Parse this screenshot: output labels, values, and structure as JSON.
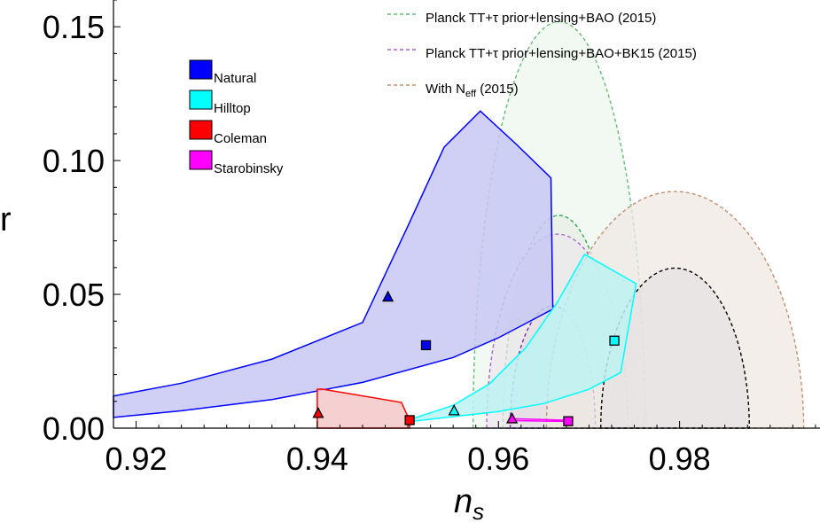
{
  "chart_data": {
    "type": "area",
    "xlabel": "n",
    "xlabel_sub": "s",
    "ylabel": "r",
    "xlim": [
      0.9175,
      0.9955
    ],
    "ylim": [
      0.0,
      0.16
    ],
    "xticks": [
      0.92,
      0.94,
      0.96,
      0.98
    ],
    "xtick_labels": [
      "0.92",
      "0.94",
      "0.96",
      "0.98"
    ],
    "yticks": [
      0.0,
      0.05,
      0.1,
      0.15
    ],
    "ytick_labels": [
      "0.00",
      "0.05",
      "0.10",
      "0.15"
    ],
    "legend_models": [
      {
        "name": "Natural",
        "color": "#0000ff"
      },
      {
        "name": "Hilltop",
        "color": "#00ffff"
      },
      {
        "name": "Coleman",
        "color": "#ff0000"
      },
      {
        "name": "Starobinsky",
        "color": "#ff00ff"
      }
    ],
    "legend_planck": [
      {
        "label": "Planck TT+τ prior+lensing+BAO (2015)",
        "color": "#66bb77"
      },
      {
        "label": "Planck TT+τ prior+lensing+BAO+BK15 (2015)",
        "color": "#aa66cc"
      },
      {
        "label_main": "With N",
        "label_sub": "eff",
        "label_tail": " (2015)",
        "color": "#c09070"
      }
    ],
    "model_regions": [
      {
        "name": "Natural",
        "fill": "#c8c8f5",
        "stroke": "#0000ff",
        "outline": [
          [
            0.9175,
            0.004
          ],
          [
            0.925,
            0.0065
          ],
          [
            0.935,
            0.0107
          ],
          [
            0.945,
            0.0171
          ],
          [
            0.955,
            0.0264
          ],
          [
            0.96,
            0.0338
          ],
          [
            0.963,
            0.0391
          ],
          [
            0.966,
            0.0445
          ],
          [
            0.9658,
            0.0935
          ],
          [
            0.962,
            0.106
          ],
          [
            0.958,
            0.1185
          ],
          [
            0.954,
            0.105
          ],
          [
            0.95,
            0.0755
          ],
          [
            0.945,
            0.0395
          ],
          [
            0.935,
            0.0258
          ],
          [
            0.925,
            0.0168
          ],
          [
            0.9175,
            0.012
          ]
        ]
      },
      {
        "name": "Hilltop",
        "fill": "#bdf2f2",
        "stroke": "#00ffff",
        "outline": [
          [
            0.9503,
            0.0025
          ],
          [
            0.955,
            0.0043
          ],
          [
            0.96,
            0.0062
          ],
          [
            0.965,
            0.0092
          ],
          [
            0.97,
            0.0145
          ],
          [
            0.9735,
            0.0208
          ],
          [
            0.9752,
            0.054
          ],
          [
            0.9695,
            0.065
          ],
          [
            0.9665,
            0.047
          ],
          [
            0.963,
            0.03
          ],
          [
            0.959,
            0.0165
          ],
          [
            0.955,
            0.0085
          ],
          [
            0.9505,
            0.0035
          ]
        ]
      },
      {
        "name": "Coleman",
        "fill": "#f5c8c8",
        "stroke": "#ff0000",
        "outline": [
          [
            0.94,
            0.0
          ],
          [
            0.9502,
            0.0
          ],
          [
            0.9502,
            0.0028
          ],
          [
            0.9493,
            0.0096
          ],
          [
            0.9405,
            0.0146
          ],
          [
            0.94,
            0.0145
          ]
        ]
      },
      {
        "name": "Starobinsky",
        "fill": "#f3c8f3",
        "stroke": "#ff00ff",
        "outline": [
          [
            0.9615,
            0.0035
          ],
          [
            0.9648,
            0.0032
          ],
          [
            0.9678,
            0.0029
          ],
          [
            0.9678,
            0.0025
          ],
          [
            0.9615,
            0.0028
          ]
        ]
      }
    ],
    "planck_contours": [
      {
        "name": "Planck TT+τ prior+lensing+BAO (2015) 95%",
        "fill": "#eef5ee",
        "stroke": "#66bb77",
        "center": [
          0.9667,
          0.0
        ],
        "rx": 0.0095,
        "ry": 0.152
      },
      {
        "name": "Planck TT+τ prior+lensing+BAO (2015) 68%",
        "fill": "#e6efe6",
        "stroke": "#33aa55",
        "center": [
          0.9667,
          0.0
        ],
        "rx": 0.0062,
        "ry": 0.0795
      },
      {
        "name": "Planck TT+τ prior+lensing+BAO+BK15 (2015) 95%",
        "fill": "#ece8ec",
        "stroke": "#aa66cc",
        "center": [
          0.9665,
          0.0
        ],
        "rx": 0.0078,
        "ry": 0.0725
      },
      {
        "name": "Planck TT+τ prior+lensing+BAO+BK15 (2015) 68%",
        "fill": "#e3dde3",
        "stroke": "#7733aa",
        "center": [
          0.966,
          0.0
        ],
        "rx": 0.0047,
        "ry": 0.0457
      },
      {
        "name": "With Neff (2015) 95%",
        "fill": "#efe8e3",
        "stroke": "#c09070",
        "center": [
          0.9795,
          0.0
        ],
        "rx": 0.0142,
        "ry": 0.0885
      },
      {
        "name": "With Neff (2015) 68%",
        "fill": "#e4e2e2",
        "stroke": "#000000",
        "center": [
          0.9795,
          0.0
        ],
        "rx": 0.0082,
        "ry": 0.0598
      }
    ],
    "markers": [
      {
        "model": "Natural",
        "shape": "triangle",
        "color": "#0000ff",
        "x": 0.9478,
        "y": 0.049
      },
      {
        "model": "Natural",
        "shape": "square",
        "color": "#0000ff",
        "x": 0.952,
        "y": 0.031
      },
      {
        "model": "Hilltop",
        "shape": "triangle",
        "color": "#00ffff",
        "x": 0.9551,
        "y": 0.0065
      },
      {
        "model": "Hilltop",
        "shape": "square",
        "color": "#00ffff",
        "x": 0.9728,
        "y": 0.0327
      },
      {
        "model": "Coleman",
        "shape": "triangle",
        "color": "#ff0000",
        "x": 0.9401,
        "y": 0.0055
      },
      {
        "model": "Coleman",
        "shape": "square",
        "color": "#ff0000",
        "x": 0.9502,
        "y": 0.003
      },
      {
        "model": "Starobinsky",
        "shape": "triangle",
        "color": "#ff00ff",
        "x": 0.9615,
        "y": 0.0035
      },
      {
        "model": "Starobinsky",
        "shape": "square",
        "color": "#ff00ff",
        "x": 0.9677,
        "y": 0.0026
      }
    ]
  }
}
